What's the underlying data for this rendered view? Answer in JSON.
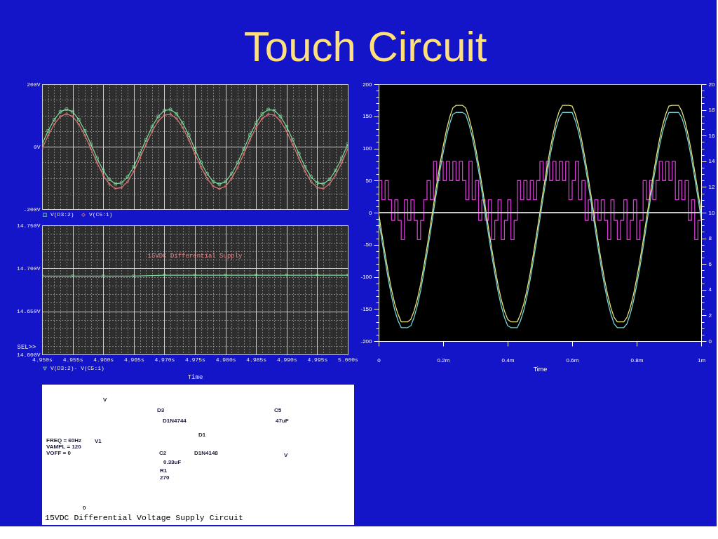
{
  "chart_data": [
    {
      "type": "line",
      "title": "Touch Circuit",
      "x": [
        4.95,
        4.951,
        4.952,
        4.953,
        4.954,
        4.955,
        4.956,
        4.957,
        4.958,
        4.959,
        4.96,
        4.961,
        4.962,
        4.963,
        4.964,
        4.965,
        4.966,
        4.967,
        4.968,
        4.969,
        4.97,
        4.971,
        4.972,
        4.973,
        4.974,
        4.975,
        4.976,
        4.977,
        4.978,
        4.979,
        4.98,
        4.981,
        4.982,
        4.983,
        4.984,
        4.985,
        4.986,
        4.987,
        4.988,
        4.989,
        4.99,
        4.991,
        4.992,
        4.993,
        4.994,
        4.995,
        4.996,
        4.997,
        4.998,
        4.999,
        5.0
      ],
      "xlim": [
        4.95,
        5.0
      ],
      "ylim": [
        -200,
        200
      ],
      "xticks": [
        4.95,
        {
          "value": 4.951,
          "label": null
        },
        {
          "value": 4.952,
          "label": null
        },
        {
          "value": 4.953,
          "label": null
        },
        {
          "value": 4.954,
          "label": null
        },
        4.955,
        {
          "value": 4.956,
          "label": null
        },
        {
          "value": 4.957,
          "label": null
        },
        {
          "value": 4.958,
          "label": null
        },
        {
          "value": 4.959,
          "label": null
        },
        4.96,
        {
          "value": 4.961,
          "label": null
        },
        {
          "value": 4.962,
          "label": null
        },
        {
          "value": 4.963,
          "label": null
        },
        {
          "value": 4.964,
          "label": null
        },
        4.965,
        {
          "value": 4.966,
          "label": null
        },
        {
          "value": 4.967,
          "label": null
        },
        {
          "value": 4.968,
          "label": null
        },
        {
          "value": 4.969,
          "label": null
        },
        4.97,
        {
          "value": 4.971,
          "label": null
        },
        {
          "value": 4.972,
          "label": null
        },
        {
          "value": 4.973,
          "label": null
        },
        {
          "value": 4.974,
          "label": null
        },
        4.975,
        {
          "value": 4.976,
          "label": null
        },
        {
          "value": 4.977,
          "label": null
        },
        {
          "value": 4.978,
          "label": null
        },
        {
          "value": 4.979,
          "label": null
        },
        4.98,
        {
          "value": 4.981,
          "label": null
        },
        {
          "value": 4.982,
          "label": null
        },
        {
          "value": 4.983,
          "label": null
        },
        {
          "value": 4.984,
          "label": null
        },
        4.985,
        {
          "value": 4.986,
          "label": null
        },
        {
          "value": 4.987,
          "label": null
        },
        {
          "value": 4.988,
          "label": null
        },
        {
          "value": 4.989,
          "label": null
        },
        4.99,
        {
          "value": 4.991,
          "label": null
        },
        {
          "value": 4.992,
          "label": null
        },
        {
          "value": 4.993,
          "label": null
        },
        {
          "value": 4.994,
          "label": null
        },
        4.995,
        {
          "value": 4.996,
          "label": null
        },
        {
          "value": 4.997,
          "label": null
        },
        {
          "value": 4.998,
          "label": null
        },
        {
          "value": 4.999,
          "label": null
        },
        5.0
      ],
      "yticks": [
        {
          "value": -200,
          "label": "-200V"
        },
        {
          "value": -150,
          "label": null
        },
        {
          "value": -100,
          "label": null
        },
        {
          "value": -50,
          "label": null
        },
        {
          "value": 0,
          "label": "0V"
        },
        {
          "value": 50,
          "label": null
        },
        {
          "value": 100,
          "label": null
        },
        {
          "value": 150,
          "label": null
        },
        {
          "value": 200,
          "label": "200V"
        }
      ],
      "tick_labels": "y",
      "grid": true,
      "legend": "bottom left",
      "series": [
        {
          "name": "V(D3:2)",
          "color": "#7fdc9c",
          "marker": "square",
          "values": [
            8,
            51,
            87,
            112,
            120,
            112,
            87,
            51,
            8,
            -37,
            -76,
            -105,
            -119,
            -116,
            -97,
            -64,
            -22,
            22,
            64,
            97,
            116,
            119,
            105,
            76,
            37,
            -8,
            -51,
            -87,
            -112,
            -120,
            -112,
            -87,
            -51,
            -8,
            37,
            76,
            105,
            119,
            116,
            97,
            64,
            22,
            -22,
            -64,
            -97,
            -116,
            -119,
            -105,
            -76,
            -37,
            8
          ]
        },
        {
          "name": "V(C5:1)",
          "color": "#e07a7a",
          "marker": "diamond",
          "values": [
            -7,
            36,
            72,
            97,
            105,
            97,
            72,
            36,
            -7,
            -52,
            -91,
            -120,
            -134,
            -131,
            -112,
            -79,
            -37,
            7,
            49,
            82,
            101,
            104,
            90,
            61,
            22,
            -23,
            -66,
            -102,
            -127,
            -135,
            -127,
            -102,
            -66,
            -23,
            22,
            61,
            90,
            104,
            101,
            82,
            49,
            7,
            -37,
            -79,
            -112,
            -131,
            -134,
            -120,
            -91,
            -52,
            -7
          ]
        }
      ]
    },
    {
      "type": "line",
      "x": [
        4.95,
        4.955,
        4.96,
        4.965,
        4.97,
        4.975,
        4.98,
        4.985,
        4.99,
        4.995,
        5.0
      ],
      "xlim": [
        4.95,
        5.0
      ],
      "ylim": [
        14.6,
        14.75
      ],
      "xlabel": "Time",
      "ylabel": "SEL>>",
      "xticks": [
        {
          "value": 4.95,
          "label": "4.950s"
        },
        {
          "value": 4.951,
          "label": null
        },
        {
          "value": 4.952,
          "label": null
        },
        {
          "value": 4.953,
          "label": null
        },
        {
          "value": 4.954,
          "label": null
        },
        {
          "value": 4.955,
          "label": "4.955s"
        },
        {
          "value": 4.956,
          "label": null
        },
        {
          "value": 4.957,
          "label": null
        },
        {
          "value": 4.958,
          "label": null
        },
        {
          "value": 4.959,
          "label": null
        },
        {
          "value": 4.96,
          "label": "4.960s"
        },
        {
          "value": 4.961,
          "label": null
        },
        {
          "value": 4.962,
          "label": null
        },
        {
          "value": 4.963,
          "label": null
        },
        {
          "value": 4.964,
          "label": null
        },
        {
          "value": 4.965,
          "label": "4.965s"
        },
        {
          "value": 4.966,
          "label": null
        },
        {
          "value": 4.967,
          "label": null
        },
        {
          "value": 4.968,
          "label": null
        },
        {
          "value": 4.969,
          "label": null
        },
        {
          "value": 4.97,
          "label": "4.970s"
        },
        {
          "value": 4.971,
          "label": null
        },
        {
          "value": 4.972,
          "label": null
        },
        {
          "value": 4.973,
          "label": null
        },
        {
          "value": 4.974,
          "label": null
        },
        {
          "value": 4.975,
          "label": "4.975s"
        },
        {
          "value": 4.976,
          "label": null
        },
        {
          "value": 4.977,
          "label": null
        },
        {
          "value": 4.978,
          "label": null
        },
        {
          "value": 4.979,
          "label": null
        },
        {
          "value": 4.98,
          "label": "4.980s"
        },
        {
          "value": 4.981,
          "label": null
        },
        {
          "value": 4.982,
          "label": null
        },
        {
          "value": 4.983,
          "label": null
        },
        {
          "value": 4.984,
          "label": null
        },
        {
          "value": 4.985,
          "label": "4.985s"
        },
        {
          "value": 4.986,
          "label": null
        },
        {
          "value": 4.987,
          "label": null
        },
        {
          "value": 4.988,
          "label": null
        },
        {
          "value": 4.989,
          "label": null
        },
        {
          "value": 4.99,
          "label": "4.990s"
        },
        {
          "value": 4.991,
          "label": null
        },
        {
          "value": 4.992,
          "label": null
        },
        {
          "value": 4.993,
          "label": null
        },
        {
          "value": 4.994,
          "label": null
        },
        {
          "value": 4.995,
          "label": "4.995s"
        },
        {
          "value": 4.996,
          "label": null
        },
        {
          "value": 4.997,
          "label": null
        },
        {
          "value": 4.998,
          "label": null
        },
        {
          "value": 4.999,
          "label": null
        },
        {
          "value": 5.0,
          "label": "5.000s"
        }
      ],
      "yticks": [
        {
          "value": 14.6,
          "label": "14.600V"
        },
        {
          "value": 14.61,
          "label": null
        },
        {
          "value": 14.62,
          "label": null
        },
        {
          "value": 14.63,
          "label": null
        },
        {
          "value": 14.64,
          "label": null
        },
        {
          "value": 14.65,
          "label": "14.650V"
        },
        {
          "value": 14.66,
          "label": null
        },
        {
          "value": 14.67,
          "label": null
        },
        {
          "value": 14.68,
          "label": null
        },
        {
          "value": 14.69,
          "label": null
        },
        {
          "value": 14.7,
          "label": "14.700V"
        },
        {
          "value": 14.71,
          "label": null
        },
        {
          "value": 14.72,
          "label": null
        },
        {
          "value": 14.73,
          "label": null
        },
        {
          "value": 14.74,
          "label": null
        },
        {
          "value": 14.75,
          "label": "14.750V"
        }
      ],
      "grid": true,
      "legend": "bottom left",
      "annotations": [
        "15VDC Differential Supply"
      ],
      "series": [
        {
          "name": "V(D3:2)- V(C5:1)",
          "color": "#7fdc9c",
          "marker": "triangle",
          "values": [
            14.691,
            14.691,
            14.691,
            14.691,
            14.692,
            14.692,
            14.692,
            14.692,
            14.692,
            14.692,
            14.692
          ]
        }
      ]
    },
    {
      "type": "line",
      "x": [
        0,
        0.01,
        0.02,
        0.03,
        0.04,
        0.05,
        0.06,
        0.07,
        0.08,
        0.09,
        0.1,
        0.11,
        0.12,
        0.13,
        0.14,
        0.15,
        0.16,
        0.17,
        0.18,
        0.19,
        0.2,
        0.21,
        0.22,
        0.23,
        0.24,
        0.25,
        0.26,
        0.27,
        0.28,
        0.29,
        0.3,
        0.31,
        0.32,
        0.33,
        0.34,
        0.35,
        0.36,
        0.37,
        0.38,
        0.39,
        0.4,
        0.41,
        0.42,
        0.43,
        0.44,
        0.45,
        0.46,
        0.47,
        0.48,
        0.49,
        0.5,
        0.51,
        0.52,
        0.53,
        0.54,
        0.55,
        0.56,
        0.57,
        0.58,
        0.59,
        0.6,
        0.61,
        0.62,
        0.63,
        0.64,
        0.65,
        0.66,
        0.67,
        0.68,
        0.69,
        0.7,
        0.71,
        0.72,
        0.73,
        0.74,
        0.75,
        0.76,
        0.77,
        0.78,
        0.79,
        0.8,
        0.81,
        0.82,
        0.83,
        0.84,
        0.85,
        0.86,
        0.87,
        0.88,
        0.89,
        0.9,
        0.91,
        0.92,
        0.93,
        0.94,
        0.95,
        0.96,
        0.97,
        0.98,
        0.99,
        1
      ],
      "xlim": [
        0,
        1
      ],
      "xlabel": "Time",
      "ylim": [
        -200,
        200
      ],
      "y2lim": [
        0,
        20
      ],
      "xticks": [
        0,
        {
          "value": 0.2,
          "label": "0.2m"
        },
        {
          "value": 0.4,
          "label": "0.4m"
        },
        {
          "value": 0.6,
          "label": "0.6m"
        },
        {
          "value": 0.8,
          "label": "0.8m"
        },
        {
          "value": 1,
          "label": "1m"
        }
      ],
      "yticks": [
        -200,
        {
          "value": -190,
          "label": null
        },
        {
          "value": -180,
          "label": null
        },
        {
          "value": -170,
          "label": null
        },
        {
          "value": -160,
          "label": null
        },
        -150,
        {
          "value": -140,
          "label": null
        },
        {
          "value": -130,
          "label": null
        },
        {
          "value": -120,
          "label": null
        },
        {
          "value": -110,
          "label": null
        },
        -100,
        {
          "value": -90,
          "label": null
        },
        {
          "value": -80,
          "label": null
        },
        {
          "value": -70,
          "label": null
        },
        {
          "value": -60,
          "label": null
        },
        -50,
        {
          "value": -40,
          "label": null
        },
        {
          "value": -30,
          "label": null
        },
        {
          "value": -20,
          "label": null
        },
        {
          "value": -10,
          "label": null
        },
        0,
        {
          "value": 10,
          "label": null
        },
        {
          "value": 20,
          "label": null
        },
        {
          "value": 30,
          "label": null
        },
        {
          "value": 40,
          "label": null
        },
        50,
        {
          "value": 60,
          "label": null
        },
        {
          "value": 70,
          "label": null
        },
        {
          "value": 80,
          "label": null
        },
        {
          "value": 90,
          "label": null
        },
        100,
        {
          "value": 110,
          "label": null
        },
        {
          "value": 120,
          "label": null
        },
        {
          "value": 130,
          "label": null
        },
        {
          "value": 140,
          "label": null
        },
        150,
        {
          "value": 160,
          "label": null
        },
        {
          "value": 170,
          "label": null
        },
        {
          "value": 180,
          "label": null
        },
        {
          "value": 190,
          "label": null
        },
        200
      ],
      "y2ticks": [
        0,
        {
          "value": 0.5,
          "label": null
        },
        {
          "value": 1,
          "label": null
        },
        {
          "value": 1.5,
          "label": null
        },
        2,
        {
          "value": 2.5,
          "label": null
        },
        {
          "value": 3,
          "label": null
        },
        {
          "value": 3.5,
          "label": null
        },
        4,
        {
          "value": 4.5,
          "label": null
        },
        {
          "value": 5,
          "label": null
        },
        {
          "value": 5.5,
          "label": null
        },
        6,
        {
          "value": 6.5,
          "label": null
        },
        {
          "value": 7,
          "label": null
        },
        {
          "value": 7.5,
          "label": null
        },
        8,
        {
          "value": 8.5,
          "label": null
        },
        {
          "value": 9,
          "label": null
        },
        {
          "value": 9.5,
          "label": null
        },
        10,
        {
          "value": 10.5,
          "label": null
        },
        {
          "value": 11,
          "label": null
        },
        {
          "value": 11.5,
          "label": null
        },
        12,
        {
          "value": 12.5,
          "label": null
        },
        {
          "value": 13,
          "label": null
        },
        {
          "value": 13.5,
          "label": null
        },
        14,
        {
          "value": 14.5,
          "label": null
        },
        {
          "value": 15,
          "label": null
        },
        {
          "value": 15.5,
          "label": null
        },
        16,
        {
          "value": 16.5,
          "label": null
        },
        {
          "value": 17,
          "label": null
        },
        {
          "value": 17.5,
          "label": null
        },
        18,
        {
          "value": 18.5,
          "label": null
        },
        {
          "value": 19,
          "label": null
        },
        {
          "value": 19.5,
          "label": null
        },
        20
      ],
      "ref_lines": [
        {
          "axis": "y",
          "value": 0,
          "color": "#c8c8c8"
        }
      ],
      "series": [
        {
          "type": "step",
          "axis": "y2",
          "color": "#d23cd2",
          "values": [
            12.5,
            11,
            12.5,
            11,
            9.4,
            11,
            9.4,
            7.9,
            11,
            9.4,
            11,
            9.4,
            7.9,
            9.4,
            11,
            12.5,
            11,
            14,
            12.5,
            14,
            12.5,
            14,
            12.5,
            14,
            12.5,
            14,
            12.5,
            11,
            14,
            11,
            12.5,
            9.4,
            11,
            9.4,
            11,
            7.9,
            9.4,
            11,
            7.9,
            9.4,
            11,
            7.9,
            9.4,
            12.5,
            11,
            12.5,
            11,
            12.5,
            11,
            12.5,
            14,
            12.5,
            14,
            12.5,
            14,
            12.5,
            14,
            12.5,
            14,
            11,
            12.5,
            14,
            11,
            12.5,
            9.4,
            11,
            9.4,
            11,
            9.4,
            11,
            9.4,
            7.9,
            11,
            9.4,
            7.9,
            9.4,
            11,
            7.9,
            9.4,
            11,
            7.9,
            9.4,
            12.5,
            11,
            12.5,
            11,
            12.5,
            14,
            12.5,
            14,
            12.5,
            14,
            11,
            12.5,
            11,
            12.5,
            9.4,
            11,
            7.9,
            9.4,
            11
          ]
        },
        {
          "color": "#e8e27c",
          "values": [
            0,
            -33,
            -64,
            -94,
            -120,
            -142,
            -158,
            -170,
            -170,
            -170,
            -166,
            -153,
            -135,
            -112,
            -84,
            -54,
            -22,
            11,
            44,
            75,
            103,
            128,
            148,
            163,
            167,
            167,
            167,
            163,
            148,
            128,
            103,
            75,
            44,
            11,
            -22,
            -54,
            -84,
            -112,
            -135,
            -153,
            -166,
            -170,
            -170,
            -170,
            -158,
            -142,
            -120,
            -94,
            -64,
            -33,
            0,
            33,
            64,
            94,
            120,
            142,
            158,
            167,
            167,
            167,
            166,
            153,
            135,
            112,
            84,
            54,
            22,
            -11,
            -44,
            -75,
            -103,
            -128,
            -148,
            -163,
            -170,
            -170,
            -170,
            -163,
            -148,
            -128,
            -103,
            -75,
            -44,
            -11,
            22,
            54,
            84,
            112,
            135,
            153,
            166,
            167,
            167,
            167,
            158,
            142,
            120,
            94,
            64,
            33,
            0
          ]
        },
        {
          "color": "#78d4d4",
          "values": [
            -10,
            -43,
            -74,
            -104,
            -130,
            -152,
            -168,
            -179,
            -179,
            -179,
            -176,
            -163,
            -145,
            -122,
            -94,
            -64,
            -32,
            1,
            34,
            65,
            93,
            118,
            138,
            153,
            156,
            156,
            156,
            153,
            138,
            118,
            93,
            65,
            34,
            1,
            -32,
            -64,
            -94,
            -122,
            -145,
            -163,
            -176,
            -179,
            -179,
            -179,
            -168,
            -152,
            -130,
            -104,
            -74,
            -43,
            -10,
            23,
            54,
            84,
            110,
            132,
            148,
            156,
            156,
            156,
            156,
            143,
            125,
            102,
            74,
            44,
            12,
            -21,
            -54,
            -85,
            -113,
            -138,
            -158,
            -173,
            -179,
            -179,
            -179,
            -173,
            -158,
            -138,
            -113,
            -85,
            -54,
            -21,
            12,
            44,
            74,
            102,
            125,
            143,
            156,
            156,
            156,
            156,
            148,
            132,
            110,
            84,
            54,
            23,
            -10
          ]
        }
      ]
    },
    {
      "type": "other",
      "annotations": [
        "V",
        "D3",
        "D1N4744",
        "C5",
        "47uF",
        "D1",
        "FREQ = 60Hz",
        "VAMPL = 120",
        "VOFF = 0",
        "V1",
        "C2",
        "D1N4148",
        "0.33uF",
        "R1",
        "270",
        "V",
        "0",
        "15VDC Differential Voltage Supply Circuit"
      ]
    }
  ]
}
